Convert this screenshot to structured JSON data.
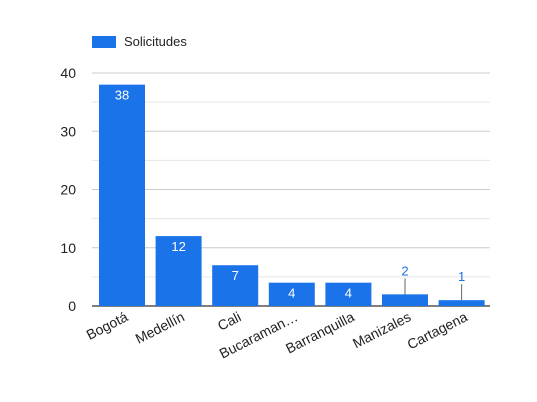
{
  "chart_data": {
    "type": "bar",
    "categories": [
      "Bogotá",
      "Medellín",
      "Cali",
      "Bucaraman…",
      "Barranquilla",
      "Manizales",
      "Cartagena"
    ],
    "series": [
      {
        "name": "Solicitudes",
        "values": [
          38,
          12,
          7,
          4,
          4,
          2,
          1
        ]
      }
    ],
    "ylim": [
      0,
      45
    ],
    "yticks": [
      0,
      10,
      20,
      30,
      40
    ],
    "grid": true,
    "legend": "top-left",
    "bar_color": "#1a73e8",
    "label_inside_color": "#ffffff",
    "label_outside_color": "#1a73e8"
  }
}
